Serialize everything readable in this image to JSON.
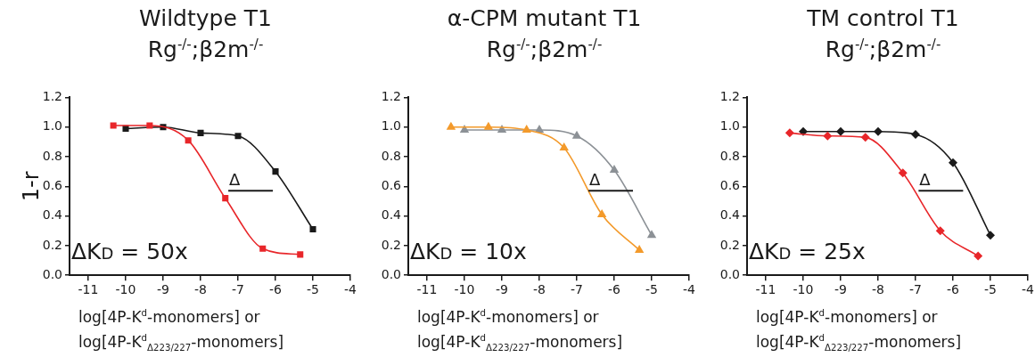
{
  "chart_data": [
    {
      "type": "line",
      "title": "Wildtype T1",
      "subtitle": "Rg$^{-/-}$;β2m$^{-/-}$",
      "xlabel": "log[4P-K$^{d}$-monomers] or\nlog[4P-K$^{d}$$_{Δ223/227}$-monomers]",
      "ylabel": "1-r",
      "annotations": [
        {
          "text": "Δ",
          "x": -7.26,
          "y": 0.57
        },
        "ΔK$_{D}$ = 50x"
      ],
      "series": [
        {
          "color": "#e8262a",
          "x": [
            -10.33,
            -9.36,
            -8.33,
            -7.34,
            -6.34,
            -5.34
          ],
          "values": [
            1.01,
            1.01,
            0.91,
            0.52,
            0.18,
            0.14
          ]
        },
        {
          "color": "#1a1a1a",
          "x": [
            -10,
            -9,
            -8,
            -7,
            -6,
            -5
          ],
          "values": [
            0.99,
            1.0,
            0.96,
            0.94,
            0.7,
            0.31
          ]
        }
      ],
      "xlim": [
        -11.5,
        -4
      ],
      "xticks": [
        -11,
        -10,
        -9,
        -8,
        -7,
        -6,
        -5,
        -4
      ],
      "ylim": [
        0,
        1.2
      ],
      "yticks": [
        {
          "value": 0,
          "label": "0.0"
        },
        {
          "value": 0.2,
          "label": "0.2"
        },
        {
          "value": 0.4,
          "label": "0.4"
        },
        {
          "value": 0.6,
          "label": "0.6"
        },
        {
          "value": 0.8,
          "label": "0.8"
        },
        {
          "value": 1.0,
          "label": "1.0"
        },
        {
          "value": 1.2,
          "label": "1.2"
        }
      ],
      "marker": "square",
      "legend": false,
      "grid": false
    },
    {
      "type": "line",
      "title": "α-CPM mutant T1",
      "subtitle": "Rg$^{-/-}$;β2m$^{-/-}$",
      "xlabel": "log[4P-K$^{d}$-monomers] or\nlog[4P-K$^{d}$$_{Δ223/227}$-monomers]",
      "annotations": [
        {
          "text": "Δ",
          "x": -6.69,
          "y": 0.57
        },
        "ΔK$_{D}$ = 10x"
      ],
      "series": [
        {
          "color": "#f39a2b",
          "x": [
            -10.36,
            -9.36,
            -8.34,
            -7.34,
            -6.33,
            -5.33
          ],
          "values": [
            1.0,
            1.0,
            0.98,
            0.86,
            0.41,
            0.17
          ]
        },
        {
          "color": "#8c9196",
          "x": [
            -10,
            -9,
            -8,
            -7,
            -6,
            -5
          ],
          "values": [
            0.98,
            0.98,
            0.98,
            0.94,
            0.71,
            0.27
          ]
        }
      ],
      "xlim": [
        -11.5,
        -4
      ],
      "xticks": [
        -11,
        -10,
        -9,
        -8,
        -7,
        -6,
        -5,
        -4
      ],
      "ylim": [
        0,
        1.2
      ],
      "yticks": [
        {
          "value": 0,
          "label": "0.0"
        },
        {
          "value": 0.2,
          "label": "0.2"
        },
        {
          "value": 0.4,
          "label": "0.4"
        },
        {
          "value": 0.6,
          "label": "0.6"
        },
        {
          "value": 0.8,
          "label": "0.8"
        },
        {
          "value": 1.0,
          "label": "1.0"
        },
        {
          "value": 1.2,
          "label": "1.2"
        }
      ],
      "marker": "triangle",
      "legend": false,
      "grid": false
    },
    {
      "type": "line",
      "title": "TM control T1",
      "subtitle": "Rg$^{-/-}$;β2m$^{-/-}$",
      "xlabel": "log[4P-K$^{d}$-monomers] or\nlog[4P-K$^{d}$$_{Δ223/227}$-monomers]",
      "annotations": [
        {
          "text": "Δ",
          "x": -6.92,
          "y": 0.57
        },
        "ΔK$_{D}$ = 25x"
      ],
      "series": [
        {
          "color": "#e8262a",
          "x": [
            -10.36,
            -9.35,
            -8.34,
            -7.34,
            -6.34,
            -5.33
          ],
          "values": [
            0.96,
            0.94,
            0.93,
            0.69,
            0.3,
            0.13
          ]
        },
        {
          "color": "#1a1a1a",
          "x": [
            -10,
            -9,
            -8,
            -7,
            -6,
            -5
          ],
          "values": [
            0.97,
            0.97,
            0.97,
            0.95,
            0.76,
            0.27
          ]
        }
      ],
      "xlim": [
        -11.5,
        -4
      ],
      "xticks": [
        -11,
        -10,
        -9,
        -8,
        -7,
        -6,
        -5,
        -4
      ],
      "ylim": [
        0,
        1.2
      ],
      "yticks": [
        {
          "value": 0,
          "label": "0.0"
        },
        {
          "value": 0.2,
          "label": "0.2"
        },
        {
          "value": 0.4,
          "label": "0.4"
        },
        {
          "value": 0.6,
          "label": "0.6"
        },
        {
          "value": 0.8,
          "label": "0.8"
        },
        {
          "value": 1.0,
          "label": "1.0"
        },
        {
          "value": 1.2,
          "label": "1.2"
        }
      ],
      "marker": "diamond",
      "legend": false,
      "grid": false
    }
  ]
}
